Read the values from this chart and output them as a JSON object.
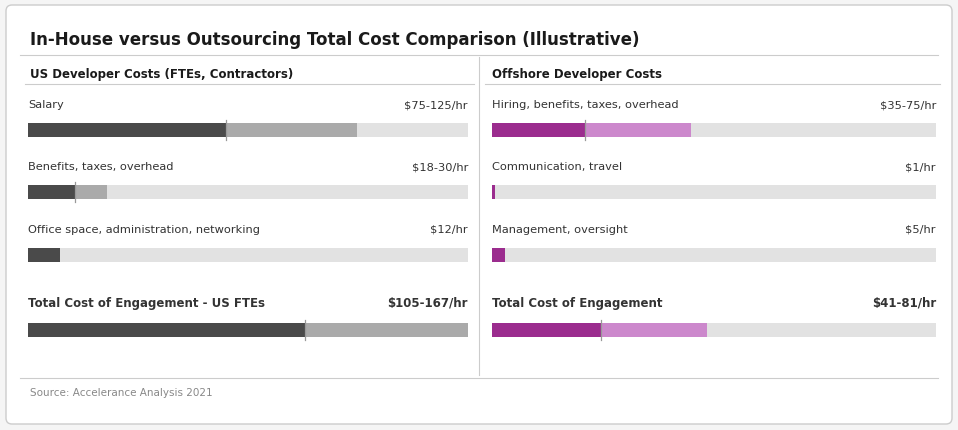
{
  "title": "In-House versus Outsourcing Total Cost Comparison (Illustrative)",
  "source": "Source: Accelerance Analysis 2021",
  "left_section_title": "US Developer Costs (FTEs, Contractors)",
  "right_section_title": "Offshore Developer Costs",
  "max_value": 167,
  "left_bars": [
    {
      "label": "Salary",
      "value_label": "$75-125/hr",
      "low": 75,
      "high": 125,
      "bold": false
    },
    {
      "label": "Benefits, taxes, overhead",
      "value_label": "$18-30/hr",
      "low": 18,
      "high": 30,
      "bold": false
    },
    {
      "label": "Office space, administration, networking",
      "value_label": "$12/hr",
      "low": 12,
      "high": 12,
      "bold": false
    },
    {
      "label": "Total Cost of Engagement - US FTEs",
      "value_label": "$105-167/hr",
      "low": 105,
      "high": 167,
      "bold": true
    }
  ],
  "right_bars": [
    {
      "label": "Hiring, benefits, taxes, overhead",
      "value_label": "$35-75/hr",
      "low": 35,
      "high": 75,
      "bold": false
    },
    {
      "label": "Communication, travel",
      "value_label": "$1/hr",
      "low": 1,
      "high": 1,
      "bold": false
    },
    {
      "label": "Management, oversight",
      "value_label": "$5/hr",
      "low": 5,
      "high": 5,
      "bold": false
    },
    {
      "label": "Total Cost of Engagement",
      "value_label": "$41-81/hr",
      "low": 41,
      "high": 81,
      "bold": true
    }
  ],
  "left_dark_color": "#4a4a4a",
  "left_light_color": "#aaaaaa",
  "left_bg_color": "#e2e2e2",
  "right_dark_color": "#9b2c8e",
  "right_light_color": "#cc88cc",
  "right_bg_color": "#e2e2e2",
  "background_color": "#f5f5f5",
  "card_color": "#ffffff",
  "title_fontsize": 12,
  "label_fontsize": 8.5,
  "source_fontsize": 7.5
}
